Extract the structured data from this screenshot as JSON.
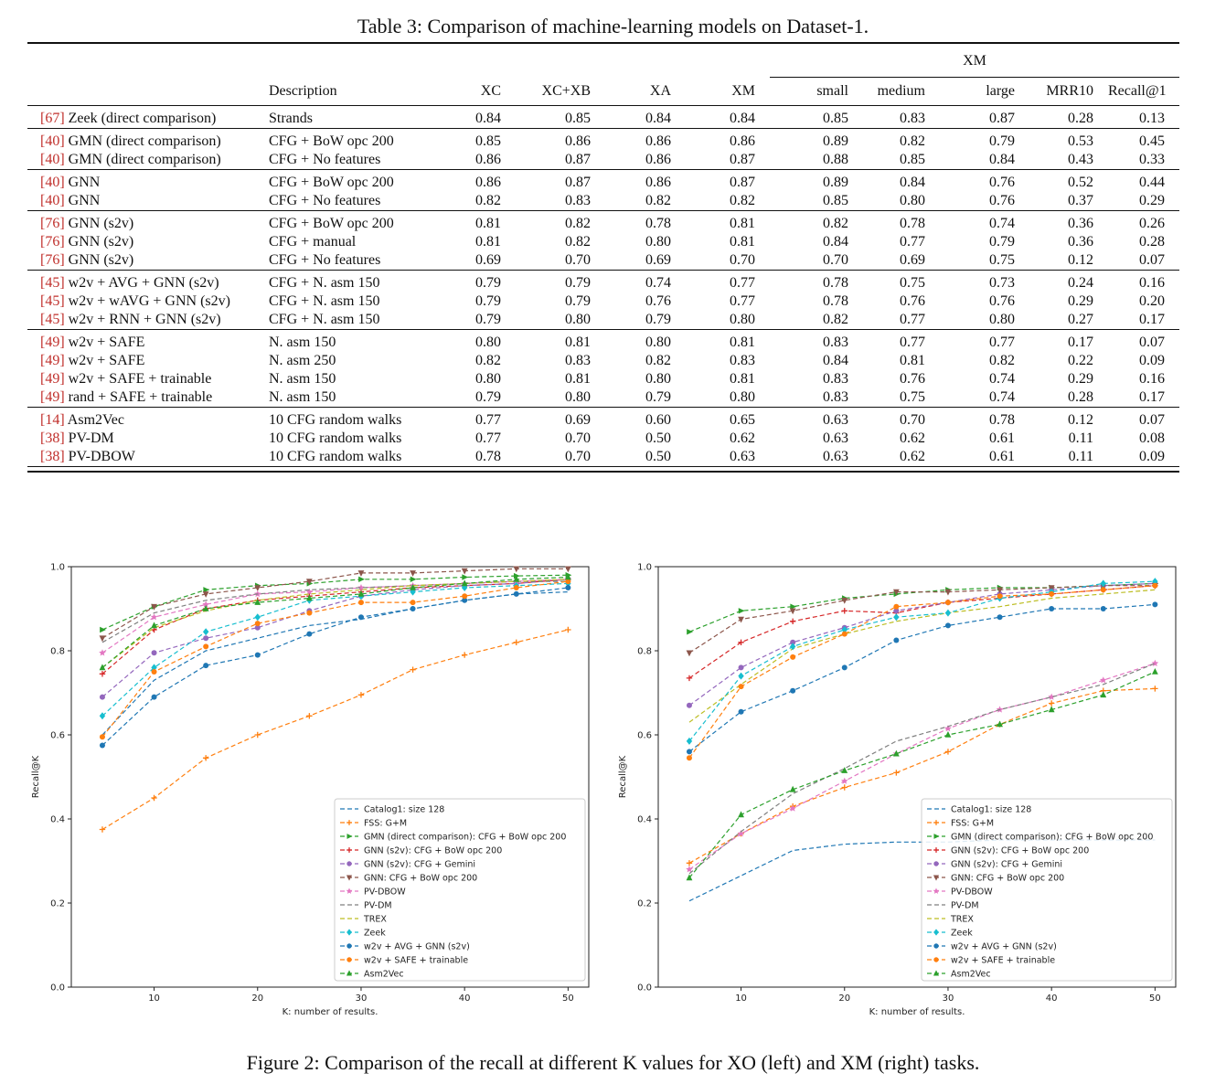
{
  "table": {
    "caption": "Table 3: Comparison of machine-learning models on Dataset-1.",
    "group_header": "XM",
    "columns": [
      "Description",
      "XC",
      "XC+XB",
      "XA",
      "XM",
      "small",
      "medium",
      "large",
      "MRR10",
      "Recall@1"
    ],
    "rows": [
      {
        "ref": "[67]",
        "model": "Zeek (direct comparison)",
        "desc": "Strands",
        "vals": [
          "0.84",
          "0.85",
          "0.84",
          "0.84",
          "0.85",
          "0.83",
          "0.87",
          "0.28",
          "0.13"
        ],
        "bold": [
          6
        ]
      },
      {
        "sep": true,
        "ref": "[40]",
        "model": "GMN (direct comparison)",
        "desc": "CFG + BoW opc 200",
        "vals": [
          "0.85",
          "0.86",
          "0.86",
          "0.86",
          "0.89",
          "0.82",
          "0.79",
          "0.53",
          "0.45"
        ],
        "bold": [
          2,
          4,
          7,
          8
        ]
      },
      {
        "ref": "[40]",
        "model": "GMN (direct comparison)",
        "desc": "CFG + No features",
        "vals": [
          "0.86",
          "0.87",
          "0.86",
          "0.87",
          "0.88",
          "0.85",
          "0.84",
          "0.43",
          "0.33"
        ],
        "bold": [
          0,
          1,
          2,
          3,
          5
        ]
      },
      {
        "sep": true,
        "ref": "[40]",
        "model": "GNN",
        "desc": "CFG + BoW opc 200",
        "vals": [
          "0.86",
          "0.87",
          "0.86",
          "0.87",
          "0.89",
          "0.84",
          "0.76",
          "0.52",
          "0.44"
        ],
        "bold": [
          0,
          1,
          2,
          3,
          4
        ]
      },
      {
        "ref": "[40]",
        "model": "GNN",
        "desc": "CFG + No features",
        "vals": [
          "0.82",
          "0.83",
          "0.82",
          "0.82",
          "0.85",
          "0.80",
          "0.76",
          "0.37",
          "0.29"
        ],
        "bold": []
      },
      {
        "sep": true,
        "ref": "[76]",
        "model": "GNN (s2v)",
        "desc": "CFG + BoW opc 200",
        "vals": [
          "0.81",
          "0.82",
          "0.78",
          "0.81",
          "0.82",
          "0.78",
          "0.74",
          "0.36",
          "0.26"
        ],
        "bold": []
      },
      {
        "ref": "[76]",
        "model": "GNN (s2v)",
        "desc": "CFG + manual",
        "vals": [
          "0.81",
          "0.82",
          "0.80",
          "0.81",
          "0.84",
          "0.77",
          "0.79",
          "0.36",
          "0.28"
        ],
        "bold": []
      },
      {
        "ref": "[76]",
        "model": "GNN (s2v)",
        "desc": "CFG + No features",
        "vals": [
          "0.69",
          "0.70",
          "0.69",
          "0.70",
          "0.70",
          "0.69",
          "0.75",
          "0.12",
          "0.07"
        ],
        "bold": []
      },
      {
        "sep": true,
        "ref": "[45]",
        "model": "w2v + AVG + GNN (s2v)",
        "desc": "CFG + N. asm 150",
        "vals": [
          "0.79",
          "0.79",
          "0.74",
          "0.77",
          "0.78",
          "0.75",
          "0.73",
          "0.24",
          "0.16"
        ],
        "bold": []
      },
      {
        "ref": "[45]",
        "model": "w2v + wAVG + GNN (s2v)",
        "desc": "CFG + N. asm 150",
        "vals": [
          "0.79",
          "0.79",
          "0.76",
          "0.77",
          "0.78",
          "0.76",
          "0.76",
          "0.29",
          "0.20"
        ],
        "bold": []
      },
      {
        "ref": "[45]",
        "model": "w2v + RNN + GNN (s2v)",
        "desc": "CFG + N. asm 150",
        "vals": [
          "0.79",
          "0.80",
          "0.79",
          "0.80",
          "0.82",
          "0.77",
          "0.80",
          "0.27",
          "0.17"
        ],
        "bold": []
      },
      {
        "sep": true,
        "ref": "[49]",
        "model": "w2v + SAFE",
        "desc": "N. asm 150",
        "vals": [
          "0.80",
          "0.81",
          "0.80",
          "0.81",
          "0.83",
          "0.77",
          "0.77",
          "0.17",
          "0.07"
        ],
        "bold": []
      },
      {
        "ref": "[49]",
        "model": "w2v + SAFE",
        "desc": "N. asm 250",
        "vals": [
          "0.82",
          "0.83",
          "0.82",
          "0.83",
          "0.84",
          "0.81",
          "0.82",
          "0.22",
          "0.09"
        ],
        "bold": []
      },
      {
        "ref": "[49]",
        "model": "w2v + SAFE + trainable",
        "desc": "N. asm 150",
        "vals": [
          "0.80",
          "0.81",
          "0.80",
          "0.81",
          "0.83",
          "0.76",
          "0.74",
          "0.29",
          "0.16"
        ],
        "bold": []
      },
      {
        "ref": "[49]",
        "model": "rand + SAFE + trainable",
        "desc": "N. asm 150",
        "vals": [
          "0.79",
          "0.80",
          "0.79",
          "0.80",
          "0.83",
          "0.75",
          "0.74",
          "0.28",
          "0.17"
        ],
        "bold": []
      },
      {
        "sep": true,
        "ref": "[14]",
        "model": "Asm2Vec",
        "desc": "10 CFG random walks",
        "vals": [
          "0.77",
          "0.69",
          "0.60",
          "0.65",
          "0.63",
          "0.70",
          "0.78",
          "0.12",
          "0.07"
        ],
        "bold": []
      },
      {
        "ref": "[38]",
        "model": "PV-DM",
        "desc": "10 CFG random walks",
        "vals": [
          "0.77",
          "0.70",
          "0.50",
          "0.62",
          "0.63",
          "0.62",
          "0.61",
          "0.11",
          "0.08"
        ],
        "bold": []
      },
      {
        "ref": "[38]",
        "model": "PV-DBOW",
        "desc": "10 CFG random walks",
        "vals": [
          "0.78",
          "0.70",
          "0.50",
          "0.63",
          "0.63",
          "0.62",
          "0.61",
          "0.11",
          "0.09"
        ],
        "bold": []
      }
    ]
  },
  "figure_caption": "Figure 2: Comparison of the recall at different K values for XO (left) and XM (right) tasks.",
  "chart_data": [
    {
      "type": "line",
      "xlabel": "K: number of results.",
      "ylabel": "Recall@K",
      "xlim": [
        2,
        52
      ],
      "ylim": [
        0.0,
        1.0
      ],
      "xticks": [
        10,
        20,
        30,
        40,
        50
      ],
      "yticks": [
        0.0,
        0.2,
        0.4,
        0.6,
        0.8,
        1.0
      ],
      "legend_position": "lower-right",
      "x": [
        5,
        10,
        15,
        20,
        25,
        30,
        35,
        40,
        45,
        50
      ],
      "series": [
        {
          "name": "Catalog1: size 128",
          "color": "#1f77b4",
          "marker": "none",
          "values": [
            0.6,
            0.73,
            0.8,
            0.83,
            0.86,
            0.875,
            0.9,
            0.92,
            0.935,
            0.94
          ]
        },
        {
          "name": "FSS: G+M",
          "color": "#ff7f0e",
          "marker": "plus",
          "values": [
            0.375,
            0.45,
            0.545,
            0.6,
            0.645,
            0.695,
            0.755,
            0.79,
            0.82,
            0.85
          ]
        },
        {
          "name": "GMN (direct comparison): CFG + BoW opc 200",
          "color": "#2ca02c",
          "marker": "triangle-right",
          "values": [
            0.85,
            0.905,
            0.945,
            0.955,
            0.96,
            0.97,
            0.97,
            0.975,
            0.978,
            0.98
          ]
        },
        {
          "name": "GNN (s2v): CFG + BoW opc 200",
          "color": "#d62728",
          "marker": "plus",
          "values": [
            0.745,
            0.85,
            0.9,
            0.92,
            0.93,
            0.94,
            0.95,
            0.955,
            0.96,
            0.97
          ]
        },
        {
          "name": "GNN (s2v): CFG + Gemini",
          "color": "#9467bd",
          "marker": "circle",
          "values": [
            0.69,
            0.795,
            0.83,
            0.855,
            0.895,
            0.93,
            0.945,
            0.955,
            0.96,
            0.97
          ]
        },
        {
          "name": "GNN: CFG + BoW opc 200",
          "color": "#8c564b",
          "marker": "triangle-down",
          "values": [
            0.83,
            0.905,
            0.935,
            0.95,
            0.965,
            0.985,
            0.985,
            0.99,
            0.995,
            0.995
          ]
        },
        {
          "name": "PV-DBOW",
          "color": "#e377c2",
          "marker": "star",
          "values": [
            0.795,
            0.88,
            0.91,
            0.935,
            0.94,
            0.95,
            0.955,
            0.96,
            0.965,
            0.97
          ]
        },
        {
          "name": "PV-DM",
          "color": "#7f7f7f",
          "marker": "none",
          "values": [
            0.82,
            0.89,
            0.92,
            0.935,
            0.945,
            0.95,
            0.955,
            0.96,
            0.965,
            0.965
          ]
        },
        {
          "name": "TREX",
          "color": "#bcbd22",
          "marker": "none",
          "values": [
            0.76,
            0.855,
            0.895,
            0.92,
            0.935,
            0.945,
            0.955,
            0.96,
            0.965,
            0.97
          ]
        },
        {
          "name": "Zeek",
          "color": "#17becf",
          "marker": "diamond",
          "values": [
            0.645,
            0.76,
            0.845,
            0.88,
            0.92,
            0.93,
            0.94,
            0.95,
            0.955,
            0.96
          ]
        },
        {
          "name": "w2v + AVG + GNN (s2v)",
          "color": "#1f77b4",
          "marker": "circle",
          "values": [
            0.575,
            0.69,
            0.765,
            0.79,
            0.84,
            0.88,
            0.9,
            0.92,
            0.935,
            0.95
          ]
        },
        {
          "name": "w2v + SAFE + trainable",
          "color": "#ff7f0e",
          "marker": "circle",
          "values": [
            0.595,
            0.75,
            0.81,
            0.865,
            0.89,
            0.915,
            0.915,
            0.93,
            0.95,
            0.965
          ]
        },
        {
          "name": "Asm2Vec",
          "color": "#2ca02c",
          "marker": "triangle-up",
          "values": [
            0.76,
            0.86,
            0.9,
            0.915,
            0.925,
            0.935,
            0.95,
            0.96,
            0.97,
            0.975
          ]
        }
      ]
    },
    {
      "type": "line",
      "xlabel": "K: number of results.",
      "ylabel": "Recall@K",
      "xlim": [
        2,
        52
      ],
      "ylim": [
        0.0,
        1.0
      ],
      "xticks": [
        10,
        20,
        30,
        40,
        50
      ],
      "yticks": [
        0.0,
        0.2,
        0.4,
        0.6,
        0.8,
        1.0
      ],
      "legend_position": "lower-right",
      "x": [
        5,
        10,
        15,
        20,
        25,
        30,
        35,
        40,
        45,
        50
      ],
      "series": [
        {
          "name": "Catalog1: size 128",
          "color": "#1f77b4",
          "marker": "none",
          "values": [
            0.205,
            0.265,
            0.325,
            0.34,
            0.345,
            0.345,
            0.35,
            0.35,
            0.35,
            0.35
          ]
        },
        {
          "name": "FSS: G+M",
          "color": "#ff7f0e",
          "marker": "plus",
          "values": [
            0.295,
            0.365,
            0.43,
            0.475,
            0.51,
            0.56,
            0.625,
            0.675,
            0.705,
            0.71
          ]
        },
        {
          "name": "GMN (direct comparison): CFG + BoW opc 200",
          "color": "#2ca02c",
          "marker": "triangle-right",
          "values": [
            0.845,
            0.895,
            0.905,
            0.925,
            0.935,
            0.945,
            0.95,
            0.95,
            0.955,
            0.96
          ]
        },
        {
          "name": "GNN (s2v): CFG + BoW opc 200",
          "color": "#d62728",
          "marker": "plus",
          "values": [
            0.735,
            0.82,
            0.87,
            0.895,
            0.89,
            0.915,
            0.925,
            0.935,
            0.945,
            0.955
          ]
        },
        {
          "name": "GNN (s2v): CFG + Gemini",
          "color": "#9467bd",
          "marker": "circle",
          "values": [
            0.67,
            0.76,
            0.82,
            0.855,
            0.895,
            0.915,
            0.935,
            0.945,
            0.955,
            0.96
          ]
        },
        {
          "name": "GNN: CFG + BoW opc 200",
          "color": "#8c564b",
          "marker": "triangle-down",
          "values": [
            0.795,
            0.875,
            0.895,
            0.92,
            0.94,
            0.94,
            0.945,
            0.95,
            0.955,
            0.955
          ]
        },
        {
          "name": "PV-DBOW",
          "color": "#e377c2",
          "marker": "star",
          "values": [
            0.28,
            0.365,
            0.425,
            0.49,
            0.555,
            0.615,
            0.66,
            0.69,
            0.73,
            0.77
          ]
        },
        {
          "name": "PV-DM",
          "color": "#7f7f7f",
          "marker": "none",
          "values": [
            0.27,
            0.37,
            0.46,
            0.52,
            0.585,
            0.62,
            0.66,
            0.69,
            0.72,
            0.77
          ]
        },
        {
          "name": "TREX",
          "color": "#bcbd22",
          "marker": "none",
          "values": [
            0.63,
            0.72,
            0.805,
            0.84,
            0.87,
            0.89,
            0.905,
            0.925,
            0.935,
            0.945
          ]
        },
        {
          "name": "Zeek",
          "color": "#17becf",
          "marker": "diamond",
          "values": [
            0.585,
            0.74,
            0.81,
            0.85,
            0.88,
            0.89,
            0.925,
            0.94,
            0.96,
            0.965
          ]
        },
        {
          "name": "w2v + AVG + GNN (s2v)",
          "color": "#1f77b4",
          "marker": "circle",
          "values": [
            0.56,
            0.655,
            0.705,
            0.76,
            0.825,
            0.86,
            0.88,
            0.9,
            0.9,
            0.91
          ]
        },
        {
          "name": "w2v + SAFE + trainable",
          "color": "#ff7f0e",
          "marker": "circle",
          "values": [
            0.545,
            0.715,
            0.785,
            0.84,
            0.905,
            0.915,
            0.93,
            0.935,
            0.945,
            0.955
          ]
        },
        {
          "name": "Asm2Vec",
          "color": "#2ca02c",
          "marker": "triangle-up",
          "values": [
            0.26,
            0.41,
            0.47,
            0.515,
            0.555,
            0.6,
            0.625,
            0.66,
            0.695,
            0.75
          ]
        }
      ]
    }
  ]
}
